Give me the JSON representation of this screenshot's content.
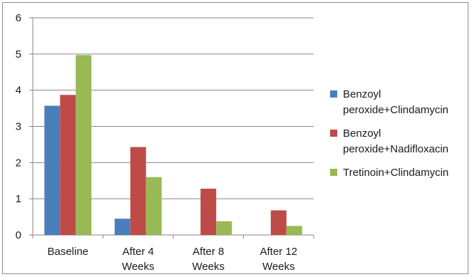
{
  "chart_data": {
    "type": "bar",
    "title": "",
    "xlabel": "",
    "ylabel": "",
    "ylim": [
      0,
      6
    ],
    "yticks": [
      0,
      1,
      2,
      3,
      4,
      5,
      6
    ],
    "grid": true,
    "legend_position": "right",
    "categories": [
      [
        "Baseline"
      ],
      [
        "After 4",
        "Weeks"
      ],
      [
        "After 8",
        "Weeks"
      ],
      [
        "After 12",
        "Weeks"
      ]
    ],
    "series": [
      {
        "name": [
          "Benzoyl",
          "peroxide+Clindamycin"
        ],
        "color": "#4a7ebb",
        "values": [
          3.57,
          0.45,
          0,
          0
        ]
      },
      {
        "name": [
          "Benzoyl",
          "peroxide+Nadifloxacin"
        ],
        "color": "#be4b48",
        "values": [
          3.87,
          2.43,
          1.28,
          0.68
        ]
      },
      {
        "name": [
          "Tretinoin+Clindamycin"
        ],
        "color": "#98b954",
        "values": [
          4.97,
          1.6,
          0.38,
          0.25
        ]
      }
    ]
  }
}
